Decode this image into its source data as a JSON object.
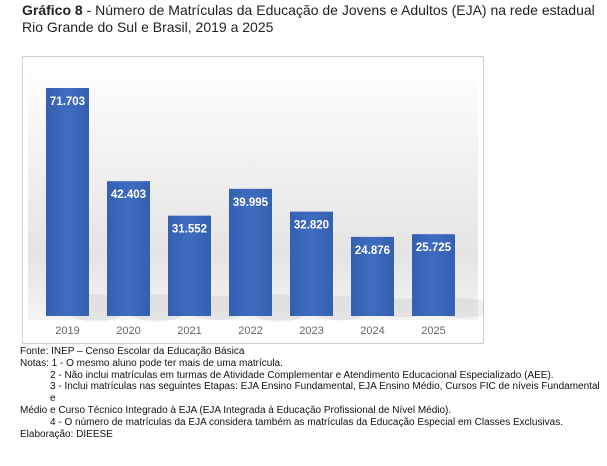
{
  "title": {
    "prefix": "Gráfico 8",
    "dash": " - ",
    "line1": "Número de Matrículas da Educação de Jovens e Adultos (EJA) na rede estadual",
    "line2": "Rio Grande do Sul e Brasil, 2019 a 2025"
  },
  "chart_data": {
    "type": "bar",
    "title": "Número de Matrículas da Educação de Jovens e Adultos (EJA) na rede estadual Rio Grande do Sul e Brasil, 2019 a 2025",
    "categories": [
      "2019",
      "2020",
      "2021",
      "2022",
      "2023",
      "2024",
      "2025"
    ],
    "values": [
      71703,
      42403,
      31552,
      39995,
      32820,
      24876,
      25725
    ],
    "labels": [
      "71.703",
      "42.403",
      "31.552",
      "39.995",
      "32.820",
      "24.876",
      "25.725"
    ],
    "xlabel": "",
    "ylabel": "",
    "ylim": [
      0,
      71703
    ],
    "grid": false,
    "bar_color": "#3a63b5"
  },
  "notes": {
    "source": "Fonte: INEP – Censo Escolar da Educação Básica",
    "n1": "Notas:  1 - O mesmo aluno pode ter mais de uma matrícula.",
    "n2": "2 - Não inclui matrículas em turmas de Atividade Complementar e Atendimento Educacional Especializado (AEE).",
    "n3a": "3 - Inclui matrículas nas seguintes Etapas: EJA Ensino Fundamental, EJA Ensino Médio, Cursos FIC de níveis Fundamental e",
    "n3b": "Médio e Curso Técnico Integrado à EJA (EJA Integrada à Educação Profissional de Nível Médio).",
    "n4": "4 - O número de matrículas da EJA considera também as matrículas da Educação Especial em Classes Exclusivas.",
    "credit": "Elaboração: DIEESE"
  }
}
